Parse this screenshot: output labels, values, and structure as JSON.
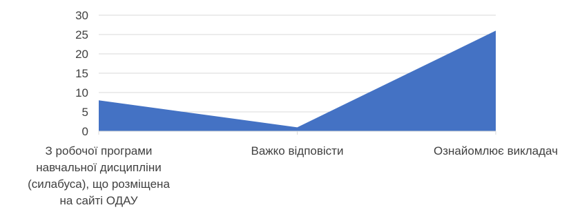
{
  "chart_data": {
    "type": "area",
    "categories": [
      [
        "З робочої програми",
        "навчальної дисципліни",
        "(силабуса), що розміщена",
        "на сайті ОДАУ"
      ],
      [
        "Важко відповісти"
      ],
      [
        "Ознайомлює викладач"
      ]
    ],
    "series": [
      {
        "values": [
          8,
          1,
          26
        ],
        "color": "#4472c4"
      }
    ],
    "ylim": [
      0,
      30
    ],
    "yticks": [
      0,
      5,
      10,
      15,
      20,
      25,
      30
    ],
    "grid": true,
    "legend": "none",
    "title": "",
    "xlabel": "",
    "ylabel": ""
  }
}
